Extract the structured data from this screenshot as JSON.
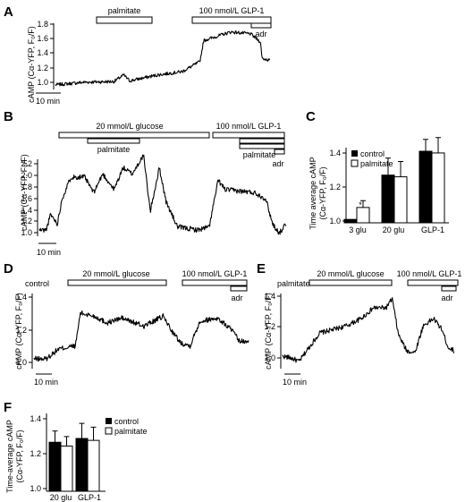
{
  "chart_data": [
    {
      "panel": "A",
      "type": "line",
      "ylabel": "cAMP (Cα-YFP, F₀/F)",
      "yticks": [
        1.0,
        1.2,
        1.4,
        1.6,
        1.8
      ],
      "ylim": [
        0.98,
        1.98
      ],
      "scale_bar": "10 min",
      "treatments": [
        "palmitate",
        "100 nmol/L GLP-1",
        "adr"
      ],
      "segments": [
        {
          "t": 0,
          "v": 1.05
        },
        {
          "t": 30,
          "v": 1.09
        },
        {
          "t": 60,
          "v": 1.1
        },
        {
          "t": 70,
          "v": 1.2
        },
        {
          "t": 76,
          "v": 1.11
        },
        {
          "t": 105,
          "v": 1.2
        },
        {
          "t": 130,
          "v": 1.25
        },
        {
          "t": 148,
          "v": 1.4
        },
        {
          "t": 152,
          "v": 1.72
        },
        {
          "t": 180,
          "v": 1.85
        },
        {
          "t": 200,
          "v": 1.82
        },
        {
          "t": 210,
          "v": 1.7
        },
        {
          "t": 212,
          "v": 1.45
        },
        {
          "t": 220,
          "v": 1.42
        }
      ]
    },
    {
      "panel": "B",
      "type": "line",
      "ylabel": "cAMP (Cα-YFP, F₀/F)",
      "yticks": [
        1.0,
        1.2,
        1.4,
        1.6,
        1.8,
        2.0,
        2.2
      ],
      "ylim": [
        0.95,
        2.3
      ],
      "scale_bar": "10 min",
      "treatments": [
        "20 mmol/L glucose",
        "palmitate",
        "100 nmol/L GLP-1",
        "palmitate",
        "adr"
      ],
      "segments": [
        {
          "t": 0,
          "v": 1.05
        },
        {
          "t": 6,
          "v": 1.05
        },
        {
          "t": 10,
          "v": 1.3
        },
        {
          "t": 16,
          "v": 1.15
        },
        {
          "t": 20,
          "v": 1.55
        },
        {
          "t": 28,
          "v": 1.9
        },
        {
          "t": 40,
          "v": 1.9
        },
        {
          "t": 48,
          "v": 1.65
        },
        {
          "t": 56,
          "v": 1.95
        },
        {
          "t": 66,
          "v": 1.7
        },
        {
          "t": 74,
          "v": 2.05
        },
        {
          "t": 82,
          "v": 1.95
        },
        {
          "t": 92,
          "v": 2.25
        },
        {
          "t": 98,
          "v": 1.35
        },
        {
          "t": 106,
          "v": 2.05
        },
        {
          "t": 112,
          "v": 1.5
        },
        {
          "t": 122,
          "v": 1.1
        },
        {
          "t": 140,
          "v": 1.05
        },
        {
          "t": 150,
          "v": 1.1
        },
        {
          "t": 158,
          "v": 1.85
        },
        {
          "t": 164,
          "v": 1.7
        },
        {
          "t": 190,
          "v": 1.65
        },
        {
          "t": 200,
          "v": 1.55
        },
        {
          "t": 206,
          "v": 1.15
        },
        {
          "t": 212,
          "v": 1.0
        },
        {
          "t": 218,
          "v": 1.15
        }
      ]
    },
    {
      "panel": "C",
      "type": "bar",
      "ylabel": "Time average cAMP (Cα-YFP, F₀/F)",
      "categories": [
        "3 glu",
        "20 glu",
        "GLP-1"
      ],
      "series": [
        {
          "name": "control",
          "values": [
            1.0,
            1.26,
            1.4
          ],
          "errors": [
            0,
            0.1,
            0.07
          ]
        },
        {
          "name": "palmitate",
          "values": [
            1.07,
            1.25,
            1.39
          ],
          "errors": [
            0.04,
            0.09,
            0.09
          ]
        }
      ],
      "yticks": [
        1.0,
        1.2,
        1.4
      ],
      "ylim": [
        0.98,
        1.5
      ],
      "annotations": [
        "*"
      ]
    },
    {
      "panel": "D",
      "type": "line",
      "title": "control",
      "ylabel": "cAMP (Cα-YFP, F₀/F)",
      "yticks": [
        1.0,
        1.2,
        1.4
      ],
      "ylim": [
        0.96,
        1.42
      ],
      "scale_bar": "10 min",
      "treatments": [
        "20 mmol/L glucose",
        "100 nmol/L GLP-1",
        "adr"
      ],
      "segments": [
        {
          "t": 0,
          "v": 1.02
        },
        {
          "t": 10,
          "v": 1.02
        },
        {
          "t": 20,
          "v": 1.08
        },
        {
          "t": 34,
          "v": 1.1
        },
        {
          "t": 38,
          "v": 1.3
        },
        {
          "t": 50,
          "v": 1.28
        },
        {
          "t": 60,
          "v": 1.24
        },
        {
          "t": 72,
          "v": 1.27
        },
        {
          "t": 90,
          "v": 1.22
        },
        {
          "t": 106,
          "v": 1.28
        },
        {
          "t": 114,
          "v": 1.18
        },
        {
          "t": 120,
          "v": 1.12
        },
        {
          "t": 128,
          "v": 1.1
        },
        {
          "t": 136,
          "v": 1.25
        },
        {
          "t": 150,
          "v": 1.27
        },
        {
          "t": 162,
          "v": 1.2
        },
        {
          "t": 168,
          "v": 1.13
        },
        {
          "t": 176,
          "v": 1.12
        }
      ]
    },
    {
      "panel": "E",
      "type": "line",
      "title": "palmitate",
      "ylabel": "cAMP (Cα-YFP, F₀/F)",
      "yticks": [
        1.0,
        1.2,
        1.4
      ],
      "ylim": [
        0.96,
        1.42
      ],
      "scale_bar": "10 min",
      "treatments": [
        "20 mmol/L glucose",
        "100 nmol/L GLP-1",
        "adr"
      ],
      "segments": [
        {
          "t": 0,
          "v": 1.03
        },
        {
          "t": 8,
          "v": 1.02
        },
        {
          "t": 16,
          "v": 1.0
        },
        {
          "t": 22,
          "v": 1.05
        },
        {
          "t": 36,
          "v": 1.16
        },
        {
          "t": 50,
          "v": 1.18
        },
        {
          "t": 62,
          "v": 1.2
        },
        {
          "t": 76,
          "v": 1.24
        },
        {
          "t": 88,
          "v": 1.3
        },
        {
          "t": 100,
          "v": 1.3
        },
        {
          "t": 106,
          "v": 1.35
        },
        {
          "t": 112,
          "v": 1.15
        },
        {
          "t": 120,
          "v": 1.06
        },
        {
          "t": 128,
          "v": 1.05
        },
        {
          "t": 136,
          "v": 1.2
        },
        {
          "t": 146,
          "v": 1.24
        },
        {
          "t": 154,
          "v": 1.18
        },
        {
          "t": 160,
          "v": 1.08
        },
        {
          "t": 166,
          "v": 1.06
        }
      ]
    },
    {
      "panel": "F",
      "type": "bar",
      "ylabel": "Time-average cAMP (Cα-YFP, F₀/F)",
      "categories": [
        "20 glu",
        "GLP-1"
      ],
      "series": [
        {
          "name": "control",
          "values": [
            1.24,
            1.26
          ],
          "errors": [
            0.06,
            0.08
          ]
        },
        {
          "name": "palmitate",
          "values": [
            1.22,
            1.25
          ],
          "errors": [
            0.05,
            0.07
          ]
        }
      ],
      "yticks": [
        1.0,
        1.2,
        1.4
      ],
      "ylim": [
        0.98,
        1.45
      ]
    }
  ],
  "labels": {
    "A": "A",
    "B": "B",
    "C": "C",
    "D": "D",
    "E": "E",
    "F": "F",
    "palmitate": "palmitate",
    "glp1": "100 nmol/L GLP-1",
    "glucose": "20 mmol/L glucose",
    "adr": "adr",
    "tenmin": "10 min",
    "control": "control",
    "star": "*",
    "ylab_trace": "cAMP (Cα-YFP, F₀/F)",
    "ylab_c1": "Time average cAMP",
    "ylab_c2": "(Cα-YFP, F₀/F)",
    "ylab_f1": "Time-average cAMP",
    "ylab_f2": "(Cα-YFP, F₀/F)"
  }
}
